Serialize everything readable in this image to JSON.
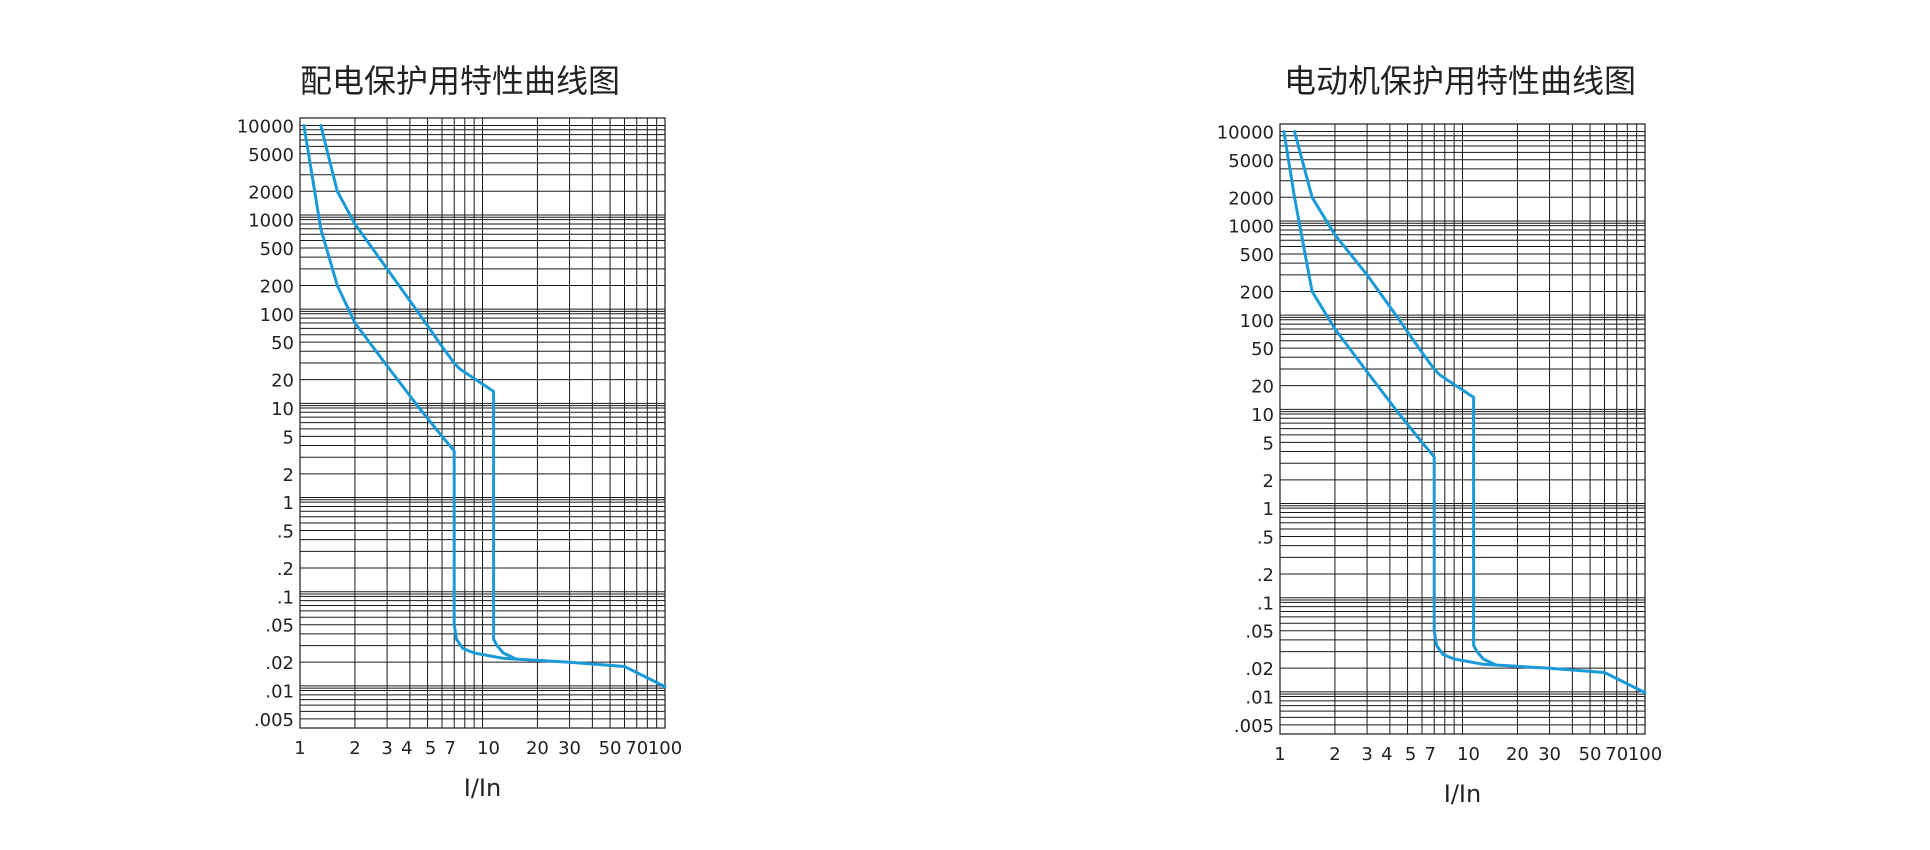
{
  "colors": {
    "curve": "#1a9ad6",
    "grid": "#1a1a1a",
    "text": "#222222"
  },
  "chart_data": [
    {
      "type": "line",
      "title": "配电保护用特性曲线图",
      "xlabel": "I/In",
      "ylabel": "",
      "x_scale": "log",
      "y_scale": "log",
      "xlim": [
        1,
        100
      ],
      "ylim": [
        0.004,
        12000
      ],
      "grid": true,
      "x_ticks": [
        {
          "value": 1,
          "label": "1"
        },
        {
          "value": 2,
          "label": "2"
        },
        {
          "value": 3,
          "label": "3"
        },
        {
          "value": 4,
          "label": "4"
        },
        {
          "value": 5,
          "label": "5"
        },
        {
          "value": 7,
          "label": "7"
        },
        {
          "value": 10,
          "label": "10"
        },
        {
          "value": 20,
          "label": "20"
        },
        {
          "value": 30,
          "label": "30"
        },
        {
          "value": 50,
          "label": "50"
        },
        {
          "value": 70,
          "label": "70"
        },
        {
          "value": 100,
          "label": "100"
        }
      ],
      "y_ticks": [
        {
          "value": 10000,
          "label": "10000"
        },
        {
          "value": 5000,
          "label": "5000"
        },
        {
          "value": 2000,
          "label": "2000"
        },
        {
          "value": 1000,
          "label": "1000"
        },
        {
          "value": 500,
          "label": "500"
        },
        {
          "value": 200,
          "label": "200"
        },
        {
          "value": 100,
          "label": "100"
        },
        {
          "value": 50,
          "label": "50"
        },
        {
          "value": 20,
          "label": "20"
        },
        {
          "value": 10,
          "label": "10"
        },
        {
          "value": 5,
          "label": "5"
        },
        {
          "value": 2,
          "label": "2"
        },
        {
          "value": 1,
          "label": "1"
        },
        {
          "value": 0.5,
          "label": ".5"
        },
        {
          "value": 0.2,
          "label": ".2"
        },
        {
          "value": 0.1,
          "label": ".1"
        },
        {
          "value": 0.05,
          "label": ".05"
        },
        {
          "value": 0.02,
          "label": ".02"
        },
        {
          "value": 0.01,
          "label": ".01"
        },
        {
          "value": 0.005,
          "label": ".005"
        }
      ],
      "series": [
        {
          "values": [
            [
              1.05,
              10000
            ],
            [
              1.3,
              800
            ],
            [
              1.6,
              200
            ],
            [
              2,
              80
            ],
            [
              3,
              28
            ],
            [
              4.5,
              10
            ],
            [
              6,
              5
            ],
            [
              7,
              3.5
            ],
            [
              7,
              0.05
            ],
            [
              7.2,
              0.035
            ],
            [
              7.8,
              0.028
            ],
            [
              9,
              0.025
            ],
            [
              13,
              0.022
            ],
            [
              30,
              0.02
            ],
            [
              60,
              0.018
            ],
            [
              100,
              0.011
            ]
          ]
        },
        {
          "values": [
            [
              1.3,
              10000
            ],
            [
              1.6,
              2000
            ],
            [
              2,
              900
            ],
            [
              3,
              300
            ],
            [
              4.5,
              100
            ],
            [
              6,
              45
            ],
            [
              7,
              30
            ],
            [
              7.5,
              26
            ],
            [
              11.5,
              15
            ],
            [
              11.5,
              1.6
            ],
            [
              11.5,
              0.035
            ],
            [
              12,
              0.03
            ],
            [
              13,
              0.025
            ],
            [
              15,
              0.022
            ]
          ]
        }
      ]
    },
    {
      "type": "line",
      "title": "电动机保护用特性曲线图",
      "xlabel": "I/In",
      "ylabel": "",
      "x_scale": "log",
      "y_scale": "log",
      "xlim": [
        1,
        100
      ],
      "ylim": [
        0.004,
        12000
      ],
      "grid": true,
      "x_ticks": [
        {
          "value": 1,
          "label": "1"
        },
        {
          "value": 2,
          "label": "2"
        },
        {
          "value": 3,
          "label": "3"
        },
        {
          "value": 4,
          "label": "4"
        },
        {
          "value": 5,
          "label": "5"
        },
        {
          "value": 7,
          "label": "7"
        },
        {
          "value": 10,
          "label": "10"
        },
        {
          "value": 20,
          "label": "20"
        },
        {
          "value": 30,
          "label": "30"
        },
        {
          "value": 50,
          "label": "50"
        },
        {
          "value": 70,
          "label": "70"
        },
        {
          "value": 100,
          "label": "100"
        }
      ],
      "y_ticks": [
        {
          "value": 10000,
          "label": "10000"
        },
        {
          "value": 5000,
          "label": "5000"
        },
        {
          "value": 2000,
          "label": "2000"
        },
        {
          "value": 1000,
          "label": "1000"
        },
        {
          "value": 500,
          "label": "500"
        },
        {
          "value": 200,
          "label": "200"
        },
        {
          "value": 100,
          "label": "100"
        },
        {
          "value": 50,
          "label": "50"
        },
        {
          "value": 20,
          "label": "20"
        },
        {
          "value": 10,
          "label": "10"
        },
        {
          "value": 5,
          "label": "5"
        },
        {
          "value": 2,
          "label": "2"
        },
        {
          "value": 1,
          "label": "1"
        },
        {
          "value": 0.5,
          "label": ".5"
        },
        {
          "value": 0.2,
          "label": ".2"
        },
        {
          "value": 0.1,
          "label": ".1"
        },
        {
          "value": 0.05,
          "label": ".05"
        },
        {
          "value": 0.02,
          "label": ".02"
        },
        {
          "value": 0.01,
          "label": ".01"
        },
        {
          "value": 0.005,
          "label": ".005"
        }
      ],
      "series": [
        {
          "values": [
            [
              1.05,
              10000
            ],
            [
              1.2,
              2000
            ],
            [
              1.5,
              200
            ],
            [
              2,
              80
            ],
            [
              3,
              28
            ],
            [
              4.5,
              10
            ],
            [
              6,
              5
            ],
            [
              7,
              3.5
            ],
            [
              7,
              0.05
            ],
            [
              7.2,
              0.035
            ],
            [
              7.8,
              0.028
            ],
            [
              9,
              0.025
            ],
            [
              13,
              0.022
            ],
            [
              30,
              0.02
            ],
            [
              60,
              0.018
            ],
            [
              100,
              0.011
            ]
          ]
        },
        {
          "values": [
            [
              1.2,
              10000
            ],
            [
              1.5,
              2000
            ],
            [
              2,
              800
            ],
            [
              3,
              300
            ],
            [
              4.5,
              100
            ],
            [
              6,
              45
            ],
            [
              7,
              30
            ],
            [
              7.5,
              26
            ],
            [
              11.5,
              15
            ],
            [
              11.5,
              1.6
            ],
            [
              11.5,
              0.035
            ],
            [
              12,
              0.03
            ],
            [
              13,
              0.025
            ],
            [
              15,
              0.022
            ]
          ]
        }
      ]
    }
  ]
}
